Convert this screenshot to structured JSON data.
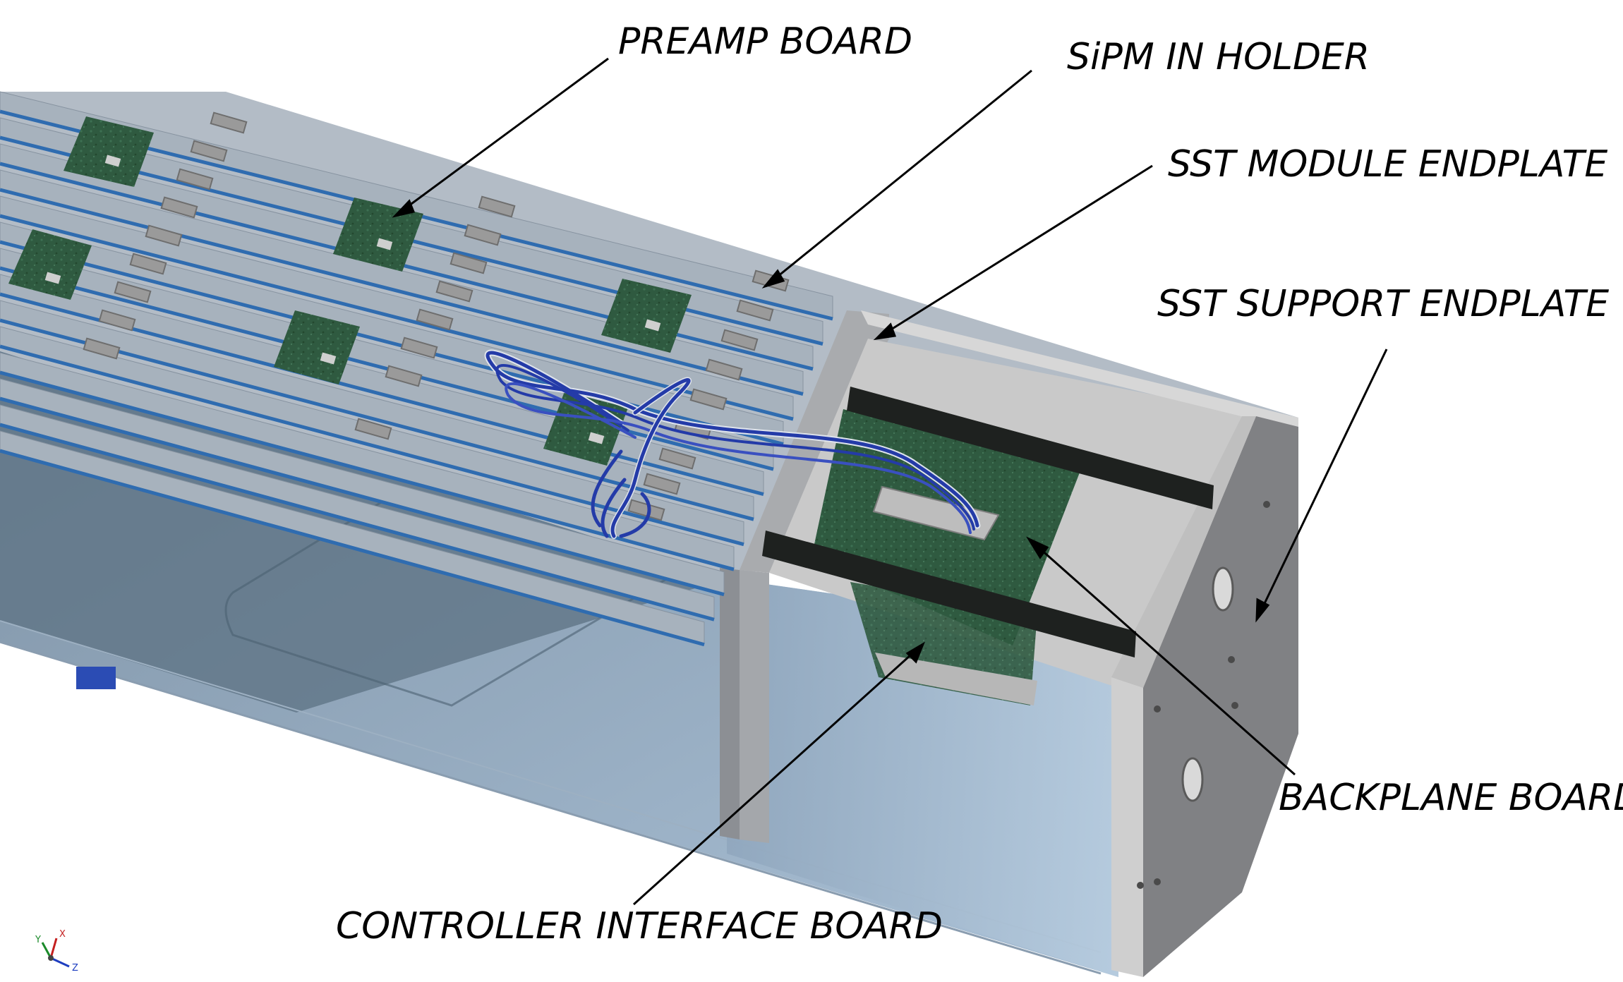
{
  "labels": {
    "preamp_board": "PREAMP BOARD",
    "sipm_in_holder": "SiPM IN HOLDER",
    "sst_module_endplate": "SST MODULE ENDPLATE",
    "sst_support_endplate": "SST SUPPORT ENDPLATE",
    "backplane_board": "BACKPLANE BOARD",
    "controller_interface_board": "CONTROLLER INTERFACE BOARD"
  },
  "axis_triad": {
    "x": "X",
    "y": "Y",
    "z": "Z"
  },
  "colors": {
    "module_shell": "#8c9cab",
    "glass_side": "#6e8aa3",
    "endplate_grey": "#c4c4c4",
    "endplate_dark": "#7d7d7d",
    "pcb_green": "#2f5a40",
    "strip_blue": "#2f6cb0",
    "strip_grey": "#a7b2bd",
    "cable_blue": "#243ba8",
    "rail_black": "#1e211f",
    "leader_line": "#000000"
  }
}
